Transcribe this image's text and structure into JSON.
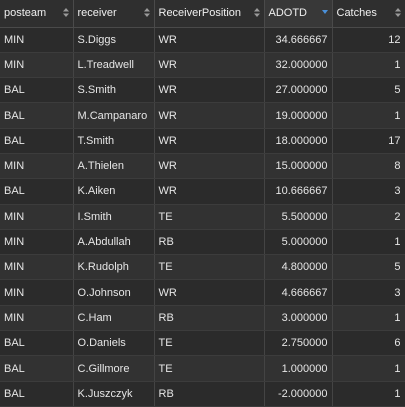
{
  "table": {
    "columns": [
      {
        "label": "posteam",
        "sorted": null
      },
      {
        "label": "receiver",
        "sorted": null
      },
      {
        "label": "ReceiverPosition",
        "sorted": null
      },
      {
        "label": "ADOTD",
        "sorted": "desc"
      },
      {
        "label": "Catches",
        "sorted": null
      }
    ],
    "rows": [
      [
        "MIN",
        "S.Diggs",
        "WR",
        "34.666667",
        "12"
      ],
      [
        "MIN",
        "L.Treadwell",
        "WR",
        "32.000000",
        "1"
      ],
      [
        "BAL",
        "S.Smith",
        "WR",
        "27.000000",
        "5"
      ],
      [
        "BAL",
        "M.Campanaro",
        "WR",
        "19.000000",
        "1"
      ],
      [
        "BAL",
        "T.Smith",
        "WR",
        "18.000000",
        "17"
      ],
      [
        "MIN",
        "A.Thielen",
        "WR",
        "15.000000",
        "8"
      ],
      [
        "BAL",
        "K.Aiken",
        "WR",
        "10.666667",
        "3"
      ],
      [
        "MIN",
        "I.Smith",
        "TE",
        "5.500000",
        "2"
      ],
      [
        "MIN",
        "A.Abdullah",
        "RB",
        "5.000000",
        "1"
      ],
      [
        "MIN",
        "K.Rudolph",
        "TE",
        "4.800000",
        "5"
      ],
      [
        "MIN",
        "O.Johnson",
        "WR",
        "4.666667",
        "3"
      ],
      [
        "MIN",
        "C.Ham",
        "RB",
        "3.000000",
        "1"
      ],
      [
        "BAL",
        "O.Daniels",
        "TE",
        "2.750000",
        "6"
      ],
      [
        "BAL",
        "C.Gillmore",
        "TE",
        "1.000000",
        "1"
      ],
      [
        "BAL",
        "K.Juszczyk",
        "RB",
        "-2.000000",
        "1"
      ]
    ]
  },
  "colors": {
    "background": "#2b2b2b",
    "row_alt": "#323232",
    "sort_active": "#4a90d9",
    "sort_inactive": "#9a9a9a"
  }
}
